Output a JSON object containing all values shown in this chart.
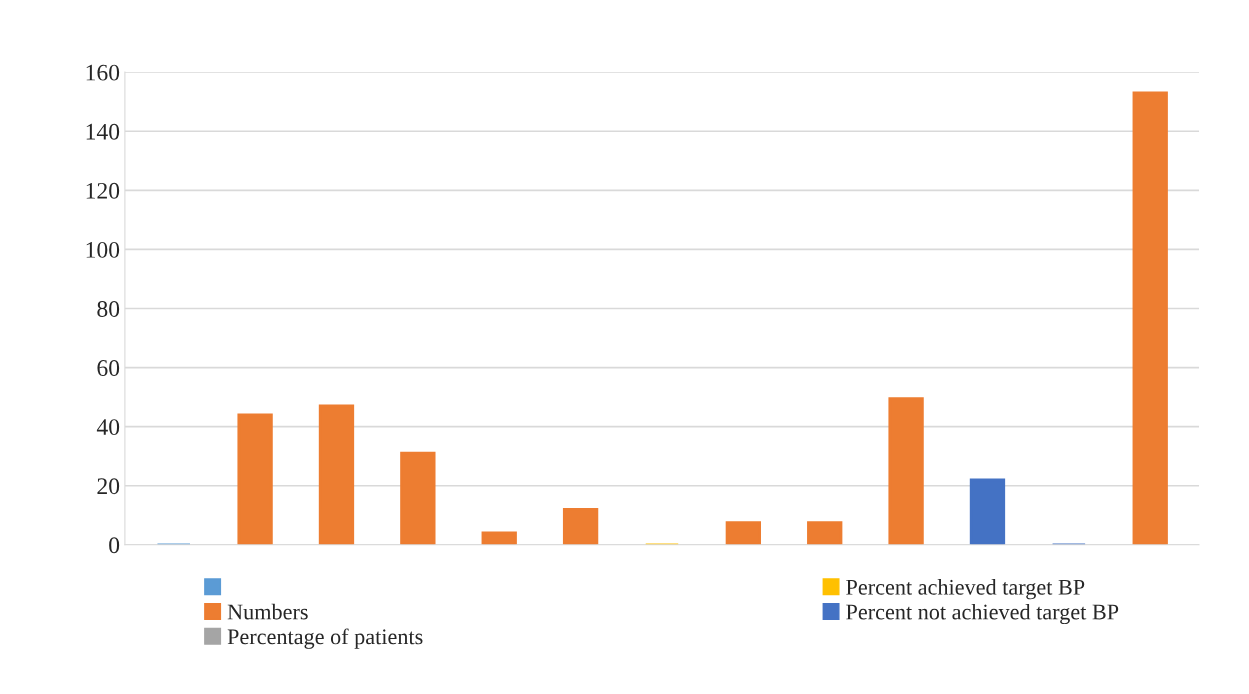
{
  "chart_data": {
    "type": "bar",
    "stacked": true,
    "categories": [
      null,
      null,
      null,
      null,
      null,
      null,
      null,
      null,
      null,
      null,
      null,
      null,
      null
    ],
    "series": [
      {
        "color": "#5b9bd5",
        "values": [
          0,
          null,
          null,
          null,
          null,
          null,
          null,
          null,
          null,
          null,
          null,
          null,
          null
        ]
      },
      {
        "name": "Numbers",
        "color": "#ed7d31",
        "values": [
          null,
          44,
          47,
          31,
          4,
          12,
          null,
          7.5,
          7.5,
          49.5,
          null,
          null,
          153
        ]
      },
      {
        "name": "Percentage of patients",
        "color": "#a5a5a5",
        "values": [
          null,
          null,
          null,
          null,
          null,
          null,
          null,
          null,
          null,
          null,
          null,
          null,
          null
        ]
      },
      {
        "name": "Percent achieved target BP",
        "color": "#ffc000",
        "values": [
          null,
          null,
          null,
          null,
          null,
          null,
          0,
          null,
          null,
          null,
          null,
          null,
          null
        ]
      },
      {
        "name": "Percent not achieved target BP",
        "color": "#4472c4",
        "values": [
          null,
          null,
          null,
          null,
          null,
          null,
          null,
          null,
          null,
          null,
          22,
          0,
          null
        ]
      }
    ],
    "ylim": [
      0,
      160
    ],
    "yticks": [
      0,
      20,
      40,
      60,
      80,
      100,
      120,
      140,
      160
    ],
    "grid": "y",
    "legend": "bottom"
  }
}
